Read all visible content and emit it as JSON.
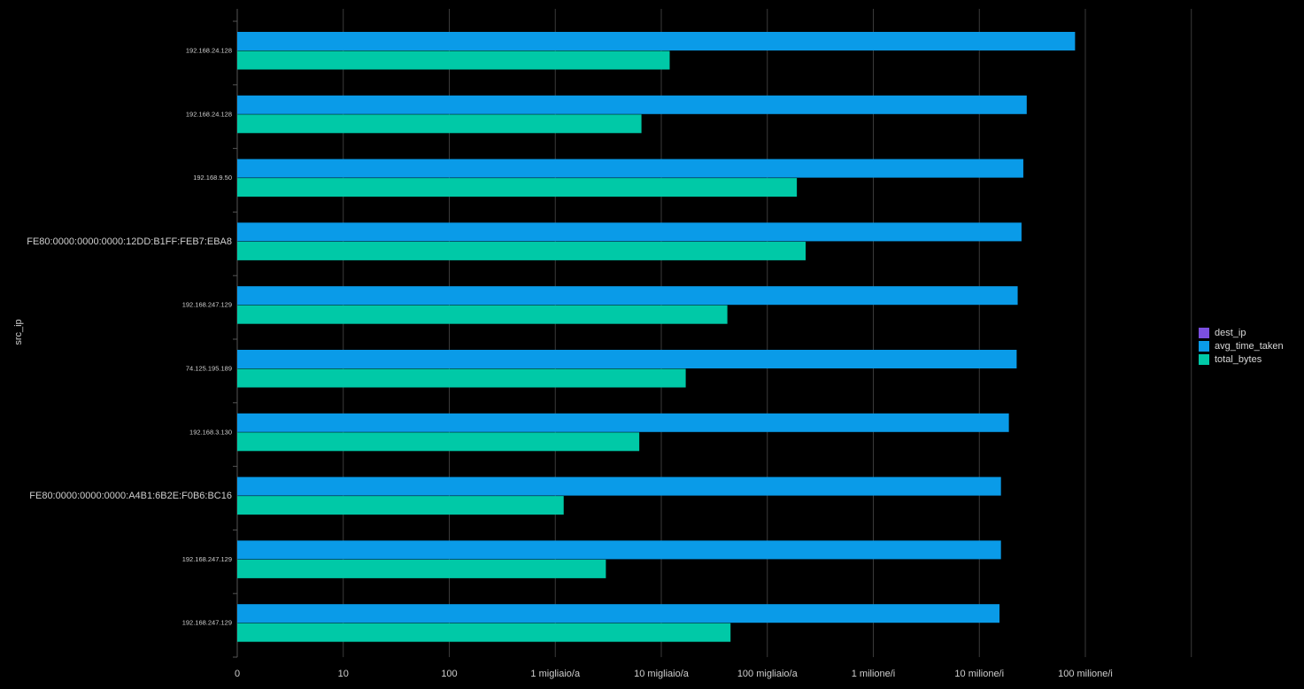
{
  "chart_data": {
    "type": "bar",
    "orientation": "horizontal",
    "ylabel": "src_ip",
    "xscale": "log",
    "grid": true,
    "legend_position": "right",
    "categories": [
      "192.168.24.128",
      "192.168.24.128",
      "192.168.9.50",
      "FE80:0000:0000:0000:12DD:B1FF:FEB7:EBA8",
      "192.168.247.129",
      "74.125.195.189",
      "192.168.3.130",
      "FE80:0000:0000:0000:A4B1:6B2E:F0B6:BC16",
      "192.168.247.129",
      "192.168.247.129"
    ],
    "x_ticks": [
      {
        "value": 1,
        "label": "0"
      },
      {
        "value": 10,
        "label": "10"
      },
      {
        "value": 100,
        "label": "100"
      },
      {
        "value": 1000,
        "label": "1 migliaio/a"
      },
      {
        "value": 10000,
        "label": "10 migliaio/a"
      },
      {
        "value": 100000,
        "label": "100 migliaio/a"
      },
      {
        "value": 1000000,
        "label": "1 milione/i"
      },
      {
        "value": 10000000,
        "label": "10 milione/i"
      },
      {
        "value": 100000000,
        "label": "100 milione/i"
      },
      {
        "value": 1000000000,
        "label": ""
      }
    ],
    "series": [
      {
        "name": "dest_ip",
        "color": "#7B4FE0",
        "values": [
          0,
          0,
          0,
          0,
          0,
          0,
          0,
          0,
          0,
          0
        ]
      },
      {
        "name": "avg_time_taken",
        "color": "#0A9BE8",
        "values": [
          80000000,
          28000000,
          26000000,
          25000000,
          23000000,
          22500000,
          19000000,
          16000000,
          16000000,
          15500000
        ]
      },
      {
        "name": "total_bytes",
        "color": "#00C9A7",
        "values": [
          12000,
          6500,
          190000,
          230000,
          42000,
          17000,
          6200,
          1200,
          3000,
          45000
        ]
      }
    ]
  }
}
